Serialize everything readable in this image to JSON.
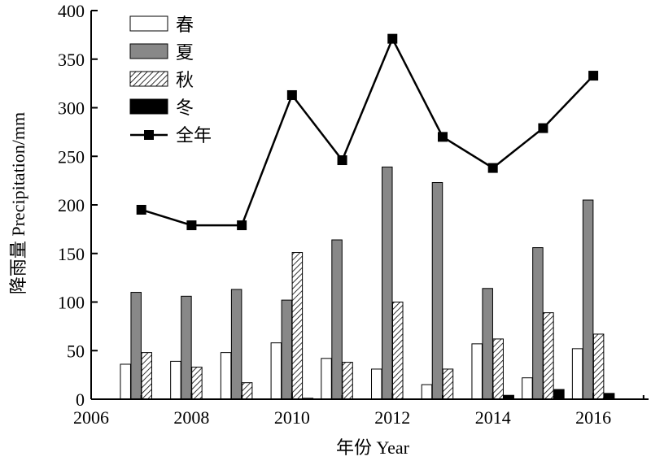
{
  "chart_data": {
    "type": "bar",
    "x": [
      2007,
      2008,
      2009,
      2010,
      2011,
      2012,
      2013,
      2014,
      2015,
      2016
    ],
    "series": [
      {
        "name": "春",
        "kind": "bar",
        "style": "white",
        "values": [
          36,
          39,
          48,
          58,
          42,
          31,
          15,
          57,
          22,
          52
        ]
      },
      {
        "name": "夏",
        "kind": "bar",
        "style": "gray",
        "values": [
          110,
          106,
          113,
          102,
          164,
          239,
          223,
          114,
          156,
          205
        ]
      },
      {
        "name": "秋",
        "kind": "bar",
        "style": "hatch",
        "values": [
          48,
          33,
          17,
          151,
          38,
          100,
          31,
          62,
          89,
          67
        ]
      },
      {
        "name": "冬",
        "kind": "bar",
        "style": "black",
        "values": [
          0,
          0,
          0,
          1,
          0,
          0,
          0,
          4,
          10,
          6
        ]
      },
      {
        "name": "全年",
        "kind": "line",
        "values": [
          195,
          179,
          179,
          313,
          246,
          371,
          270,
          238,
          279,
          333
        ]
      }
    ],
    "xlabel": "年份 Year",
    "ylabel": "降雨量 Precipitation/mm",
    "xlim": [
      2006,
      2017.1
    ],
    "ylim": [
      0,
      400
    ],
    "xticks": [
      "2006",
      "2008",
      "2010",
      "2012",
      "2014",
      "2016"
    ],
    "yticks": [
      "0",
      "50",
      "100",
      "150",
      "200",
      "250",
      "300",
      "350",
      "400"
    ],
    "grid": false,
    "legend_position": "top-left",
    "colors": {
      "gray": "#888888",
      "black": "#000000",
      "white": "#ffffff"
    }
  }
}
